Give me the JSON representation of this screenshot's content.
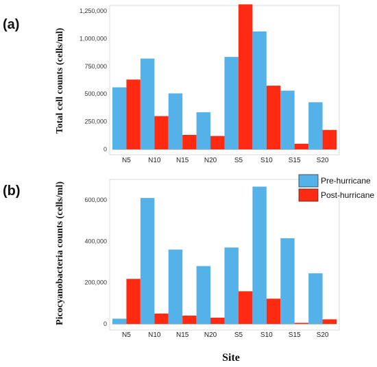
{
  "chart_data": [
    {
      "panel_label": "(a)",
      "type": "bar",
      "ylabel": "Total cell counts (cells/ml)",
      "xlabel": "",
      "categories": [
        "N5",
        "N10",
        "N15",
        "N20",
        "S5",
        "S10",
        "S15",
        "S20"
      ],
      "ylim": [
        0,
        1300000
      ],
      "yticks": [
        "0",
        "250,000",
        "500,000",
        "750,000",
        "1,000,000",
        "1,250,000"
      ],
      "ytick_values": [
        0,
        250000,
        500000,
        750000,
        1000000,
        1250000
      ],
      "series": [
        {
          "name": "Pre-hurricane",
          "color": "#55b2e8",
          "values": [
            560000,
            820000,
            505000,
            335000,
            835000,
            1065000,
            530000,
            425000
          ]
        },
        {
          "name": "Post-hurricane",
          "color": "#ff2a12",
          "values": [
            630000,
            300000,
            130000,
            120000,
            1310000,
            575000,
            50000,
            175000
          ]
        }
      ],
      "legend": false
    },
    {
      "panel_label": "(b)",
      "type": "bar",
      "ylabel": "Picocyanobacteria counts (cells/ml)",
      "xlabel": "Site",
      "categories": [
        "N5",
        "N10",
        "N15",
        "N20",
        "S5",
        "S10",
        "S15",
        "S20"
      ],
      "ylim": [
        0,
        700000
      ],
      "yticks": [
        "0",
        "200,000",
        "400,000",
        "600,000"
      ],
      "ytick_values": [
        0,
        200000,
        400000,
        600000
      ],
      "series": [
        {
          "name": "Pre-hurricane",
          "color": "#55b2e8",
          "values": [
            25000,
            610000,
            360000,
            280000,
            370000,
            665000,
            415000,
            245000
          ]
        },
        {
          "name": "Post-hurricane",
          "color": "#ff2a12",
          "values": [
            218000,
            50000,
            40000,
            30000,
            158000,
            122000,
            5000,
            22000
          ]
        }
      ],
      "legend": true,
      "legend_position": "top-right"
    }
  ]
}
